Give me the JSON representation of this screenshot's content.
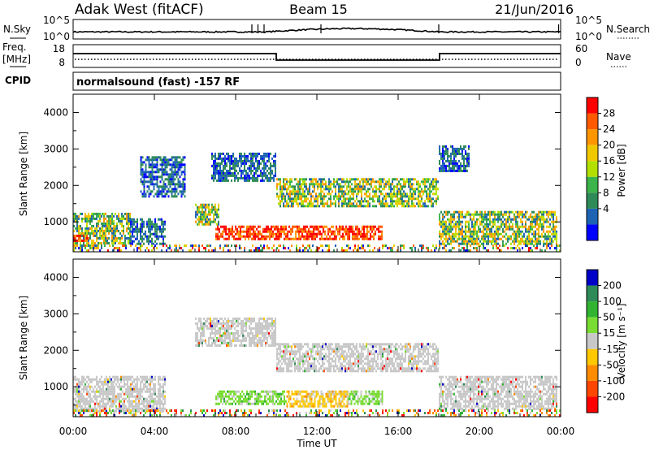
{
  "header": {
    "station": "Adak West (fitACF)",
    "beam": "Beam 15",
    "date": "21/Jun/2016"
  },
  "noise_panel": {
    "left_label": "N.Sky",
    "right_label": "N.Search",
    "left_ticks": [
      "10^5",
      "10^0"
    ],
    "right_ticks": [
      "10^5",
      "10^0"
    ]
  },
  "freq_panel": {
    "left_label_1": "Freq.",
    "left_label_2": "[MHz]",
    "right_label": "Nave",
    "left_ticks": [
      "18",
      "8"
    ],
    "right_ticks": [
      "60",
      "0"
    ]
  },
  "cpid_panel": {
    "label": "CPID",
    "text": "normalsound (fast) -157 RF"
  },
  "time_axis": {
    "label": "Time UT",
    "ticks": [
      "00:00",
      "04:00",
      "08:00",
      "12:00",
      "16:00",
      "20:00",
      "00:00"
    ]
  },
  "chart_data": [
    {
      "type": "heatmap",
      "title": "",
      "xlabel": "",
      "ylabel": "Slant Range [km]",
      "x_range_hours": [
        0,
        24
      ],
      "ylim": [
        180,
        4500
      ],
      "yticks": [
        1000,
        2000,
        3000,
        4000
      ],
      "colorbar": {
        "label": "Power [dB]",
        "ticks": [
          "28",
          "24",
          "20",
          "16",
          "12",
          "8",
          "4"
        ],
        "colors": [
          "#ff0000",
          "#ff5a00",
          "#ff9600",
          "#f0c800",
          "#b4e000",
          "#3cb44b",
          "#2e8b57",
          "#1e64b4",
          "#0000ff"
        ]
      },
      "echo_regions": [
        {
          "t": [
            0.0,
            1.4
          ],
          "r": [
            300,
            1250
          ],
          "level": "mixed"
        },
        {
          "t": [
            1.4,
            2.8
          ],
          "r": [
            400,
            1250
          ],
          "level": "mixed"
        },
        {
          "t": [
            0.0,
            0.8
          ],
          "r": [
            500,
            650
          ],
          "level": "high"
        },
        {
          "t": [
            2.8,
            4.5
          ],
          "r": [
            400,
            1100
          ],
          "level": "low"
        },
        {
          "t": [
            3.3,
            5.5
          ],
          "r": [
            1700,
            2800
          ],
          "level": "low"
        },
        {
          "t": [
            6.0,
            7.2
          ],
          "r": [
            900,
            1500
          ],
          "level": "mixed"
        },
        {
          "t": [
            6.8,
            10.0
          ],
          "r": [
            2100,
            2900
          ],
          "level": "low"
        },
        {
          "t": [
            7.0,
            15.2
          ],
          "r": [
            500,
            900
          ],
          "level": "high"
        },
        {
          "t": [
            10.0,
            18.0
          ],
          "r": [
            1400,
            2200
          ],
          "level": "mixed"
        },
        {
          "t": [
            18.0,
            23.8
          ],
          "r": [
            400,
            1300
          ],
          "level": "mixed"
        },
        {
          "t": [
            18.0,
            19.5
          ],
          "r": [
            2400,
            3100
          ],
          "level": "low"
        },
        {
          "t": [
            0.0,
            24.0
          ],
          "r": [
            180,
            380
          ],
          "level": "ground"
        }
      ]
    },
    {
      "type": "heatmap",
      "title": "",
      "xlabel": "Time UT",
      "ylabel": "Slant Range [km]",
      "x_range_hours": [
        0,
        24
      ],
      "ylim": [
        180,
        4500
      ],
      "yticks": [
        1000,
        2000,
        3000,
        4000
      ],
      "colorbar": {
        "label": "Velocity [m s⁻¹]",
        "ticks": [
          "200",
          "100",
          "50",
          "15",
          "-15",
          "-50",
          "-100",
          "-200"
        ],
        "colors": [
          "#0000c8",
          "#2e8b57",
          "#32b432",
          "#78dc32",
          "#c8c8c8",
          "#ffc800",
          "#ff8c00",
          "#ff4600",
          "#ff0000"
        ]
      },
      "echo_regions": [
        {
          "t": [
            0.0,
            4.5
          ],
          "r": [
            300,
            1300
          ],
          "level": "zero"
        },
        {
          "t": [
            6.0,
            10.0
          ],
          "r": [
            2100,
            2900
          ],
          "level": "zero"
        },
        {
          "t": [
            7.0,
            10.5
          ],
          "r": [
            500,
            900
          ],
          "level": "pos"
        },
        {
          "t": [
            10.5,
            13.5
          ],
          "r": [
            450,
            900
          ],
          "level": "neg"
        },
        {
          "t": [
            13.5,
            15.2
          ],
          "r": [
            500,
            900
          ],
          "level": "pos"
        },
        {
          "t": [
            10.0,
            18.0
          ],
          "r": [
            1400,
            2200
          ],
          "level": "zero"
        },
        {
          "t": [
            18.0,
            23.8
          ],
          "r": [
            400,
            1300
          ],
          "level": "zero"
        },
        {
          "t": [
            0.0,
            24.0
          ],
          "r": [
            180,
            380
          ],
          "level": "ground"
        }
      ]
    }
  ]
}
